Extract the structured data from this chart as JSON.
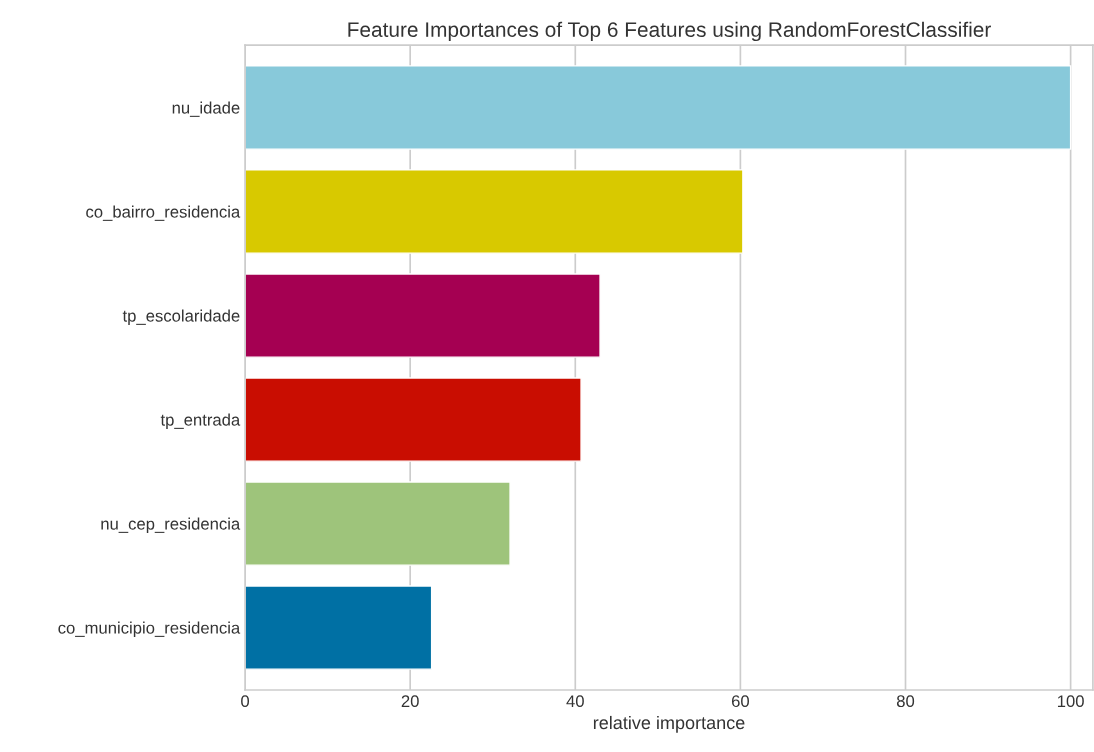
{
  "chart_data": {
    "type": "bar",
    "orientation": "horizontal",
    "title": "Feature Importances of Top 6 Features using RandomForestClassifier",
    "xlabel": "relative importance",
    "categories": [
      "nu_idade",
      "co_bairro_residencia",
      "tp_escolaridade",
      "tp_entrada",
      "nu_cep_residencia",
      "co_municipio_residencia"
    ],
    "values": [
      100,
      60.3,
      43.0,
      40.7,
      32.1,
      22.6
    ],
    "colors": [
      "#88c9da",
      "#d8c900",
      "#a50052",
      "#c90d01",
      "#9ec47b",
      "#0070a4"
    ],
    "xlim": [
      0,
      102.7
    ],
    "xticks": [
      0,
      20,
      40,
      60,
      80,
      100
    ],
    "grid": "x"
  }
}
